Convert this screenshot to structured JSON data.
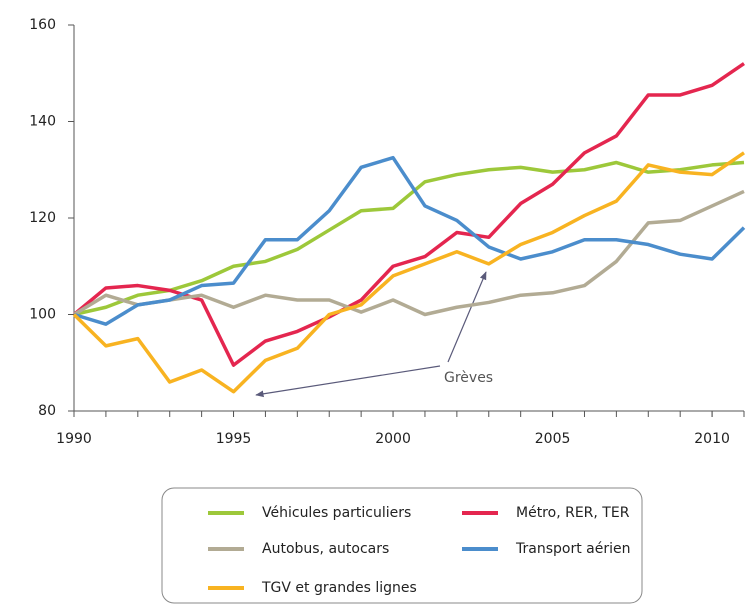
{
  "chart_data": {
    "type": "line",
    "x": [
      1990,
      1991,
      1992,
      1993,
      1994,
      1995,
      1996,
      1997,
      1998,
      1999,
      2000,
      2001,
      2002,
      2003,
      2004,
      2005,
      2006,
      2007,
      2008,
      2009,
      2010,
      2011
    ],
    "xlim": [
      1990,
      2011
    ],
    "xticks": [
      1990,
      1995,
      2000,
      2005,
      2010
    ],
    "ylim": [
      80,
      160
    ],
    "yticks": [
      80,
      100,
      120,
      140,
      160
    ],
    "series": [
      {
        "name": "Véhicules particuliers",
        "color": "#9dc83a",
        "values": [
          100,
          101.5,
          104,
          105,
          107,
          110,
          111,
          113.5,
          117.5,
          121.5,
          122,
          127.5,
          129,
          130,
          130.5,
          129.5,
          130,
          131.5,
          129.5,
          130,
          131,
          131.5
        ]
      },
      {
        "name": "Métro, RER, TER",
        "color": "#e4264f",
        "values": [
          100,
          105.5,
          106,
          105,
          103,
          89.5,
          94.5,
          96.5,
          99.5,
          103,
          110,
          112,
          117,
          116,
          123,
          127,
          133.5,
          137,
          145.5,
          145.5,
          147.5,
          152
        ]
      },
      {
        "name": "Autobus, autocars",
        "color": "#b2ab94",
        "values": [
          100,
          104,
          102,
          103,
          104,
          101.5,
          104,
          103,
          103,
          100.5,
          103,
          100,
          101.5,
          102.5,
          104,
          104.5,
          106,
          111,
          119,
          119.5,
          122.5,
          125.5
        ]
      },
      {
        "name": "Transport aérien",
        "color": "#4b8dcc",
        "values": [
          100,
          98,
          102,
          103,
          106,
          106.5,
          115.5,
          115.5,
          121.5,
          130.5,
          132.5,
          122.5,
          119.5,
          114,
          111.5,
          113,
          115.5,
          115.5,
          114.5,
          112.5,
          111.5,
          118
        ]
      },
      {
        "name": "TGV et grandes lignes",
        "color": "#f8b321",
        "values": [
          100,
          93.5,
          95,
          86,
          88.5,
          84,
          90.5,
          93,
          100,
          102,
          108,
          110.5,
          113,
          110.5,
          114.5,
          117,
          120.5,
          123.5,
          131,
          129.5,
          129,
          133.5
        ]
      }
    ],
    "annotations": [
      "Grèves"
    ]
  }
}
